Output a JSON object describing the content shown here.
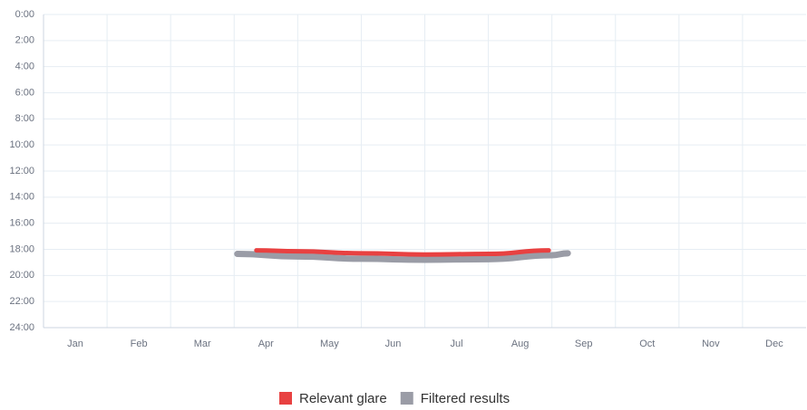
{
  "chart_data": {
    "type": "line",
    "categories": [
      "Jan",
      "Feb",
      "Mar",
      "Apr",
      "May",
      "Jun",
      "Jul",
      "Aug",
      "Sep",
      "Oct",
      "Nov",
      "Dec"
    ],
    "xlim": [
      0,
      12
    ],
    "ylim": [
      0,
      24
    ],
    "y_inverted": true,
    "yticks": [
      {
        "value": 0,
        "label": "0:00"
      },
      {
        "value": 2,
        "label": "2:00"
      },
      {
        "value": 4,
        "label": "4:00"
      },
      {
        "value": 6,
        "label": "6:00"
      },
      {
        "value": 8,
        "label": "8:00"
      },
      {
        "value": 10,
        "label": "10:00"
      },
      {
        "value": 12,
        "label": "12:00"
      },
      {
        "value": 14,
        "label": "14:00"
      },
      {
        "value": 16,
        "label": "16:00"
      },
      {
        "value": 18,
        "label": "18:00"
      },
      {
        "value": 20,
        "label": "20:00"
      },
      {
        "value": 22,
        "label": "22:00"
      },
      {
        "value": 24,
        "label": "24:00"
      }
    ],
    "grid": true,
    "legend": "bottom",
    "series": [
      {
        "name": "Relevant glare",
        "color": "#e84141",
        "width": 5,
        "x": [
          3.35,
          4,
          5,
          6,
          7,
          7.95
        ],
        "values": [
          18.08,
          18.15,
          18.3,
          18.4,
          18.35,
          18.08
        ]
      },
      {
        "name": "Filtered results",
        "color": "#9a9ca6",
        "width": 7,
        "x": [
          3.05,
          4,
          5,
          6,
          7,
          8,
          8.25
        ],
        "values": [
          18.35,
          18.55,
          18.72,
          18.8,
          18.75,
          18.45,
          18.3
        ]
      }
    ]
  }
}
